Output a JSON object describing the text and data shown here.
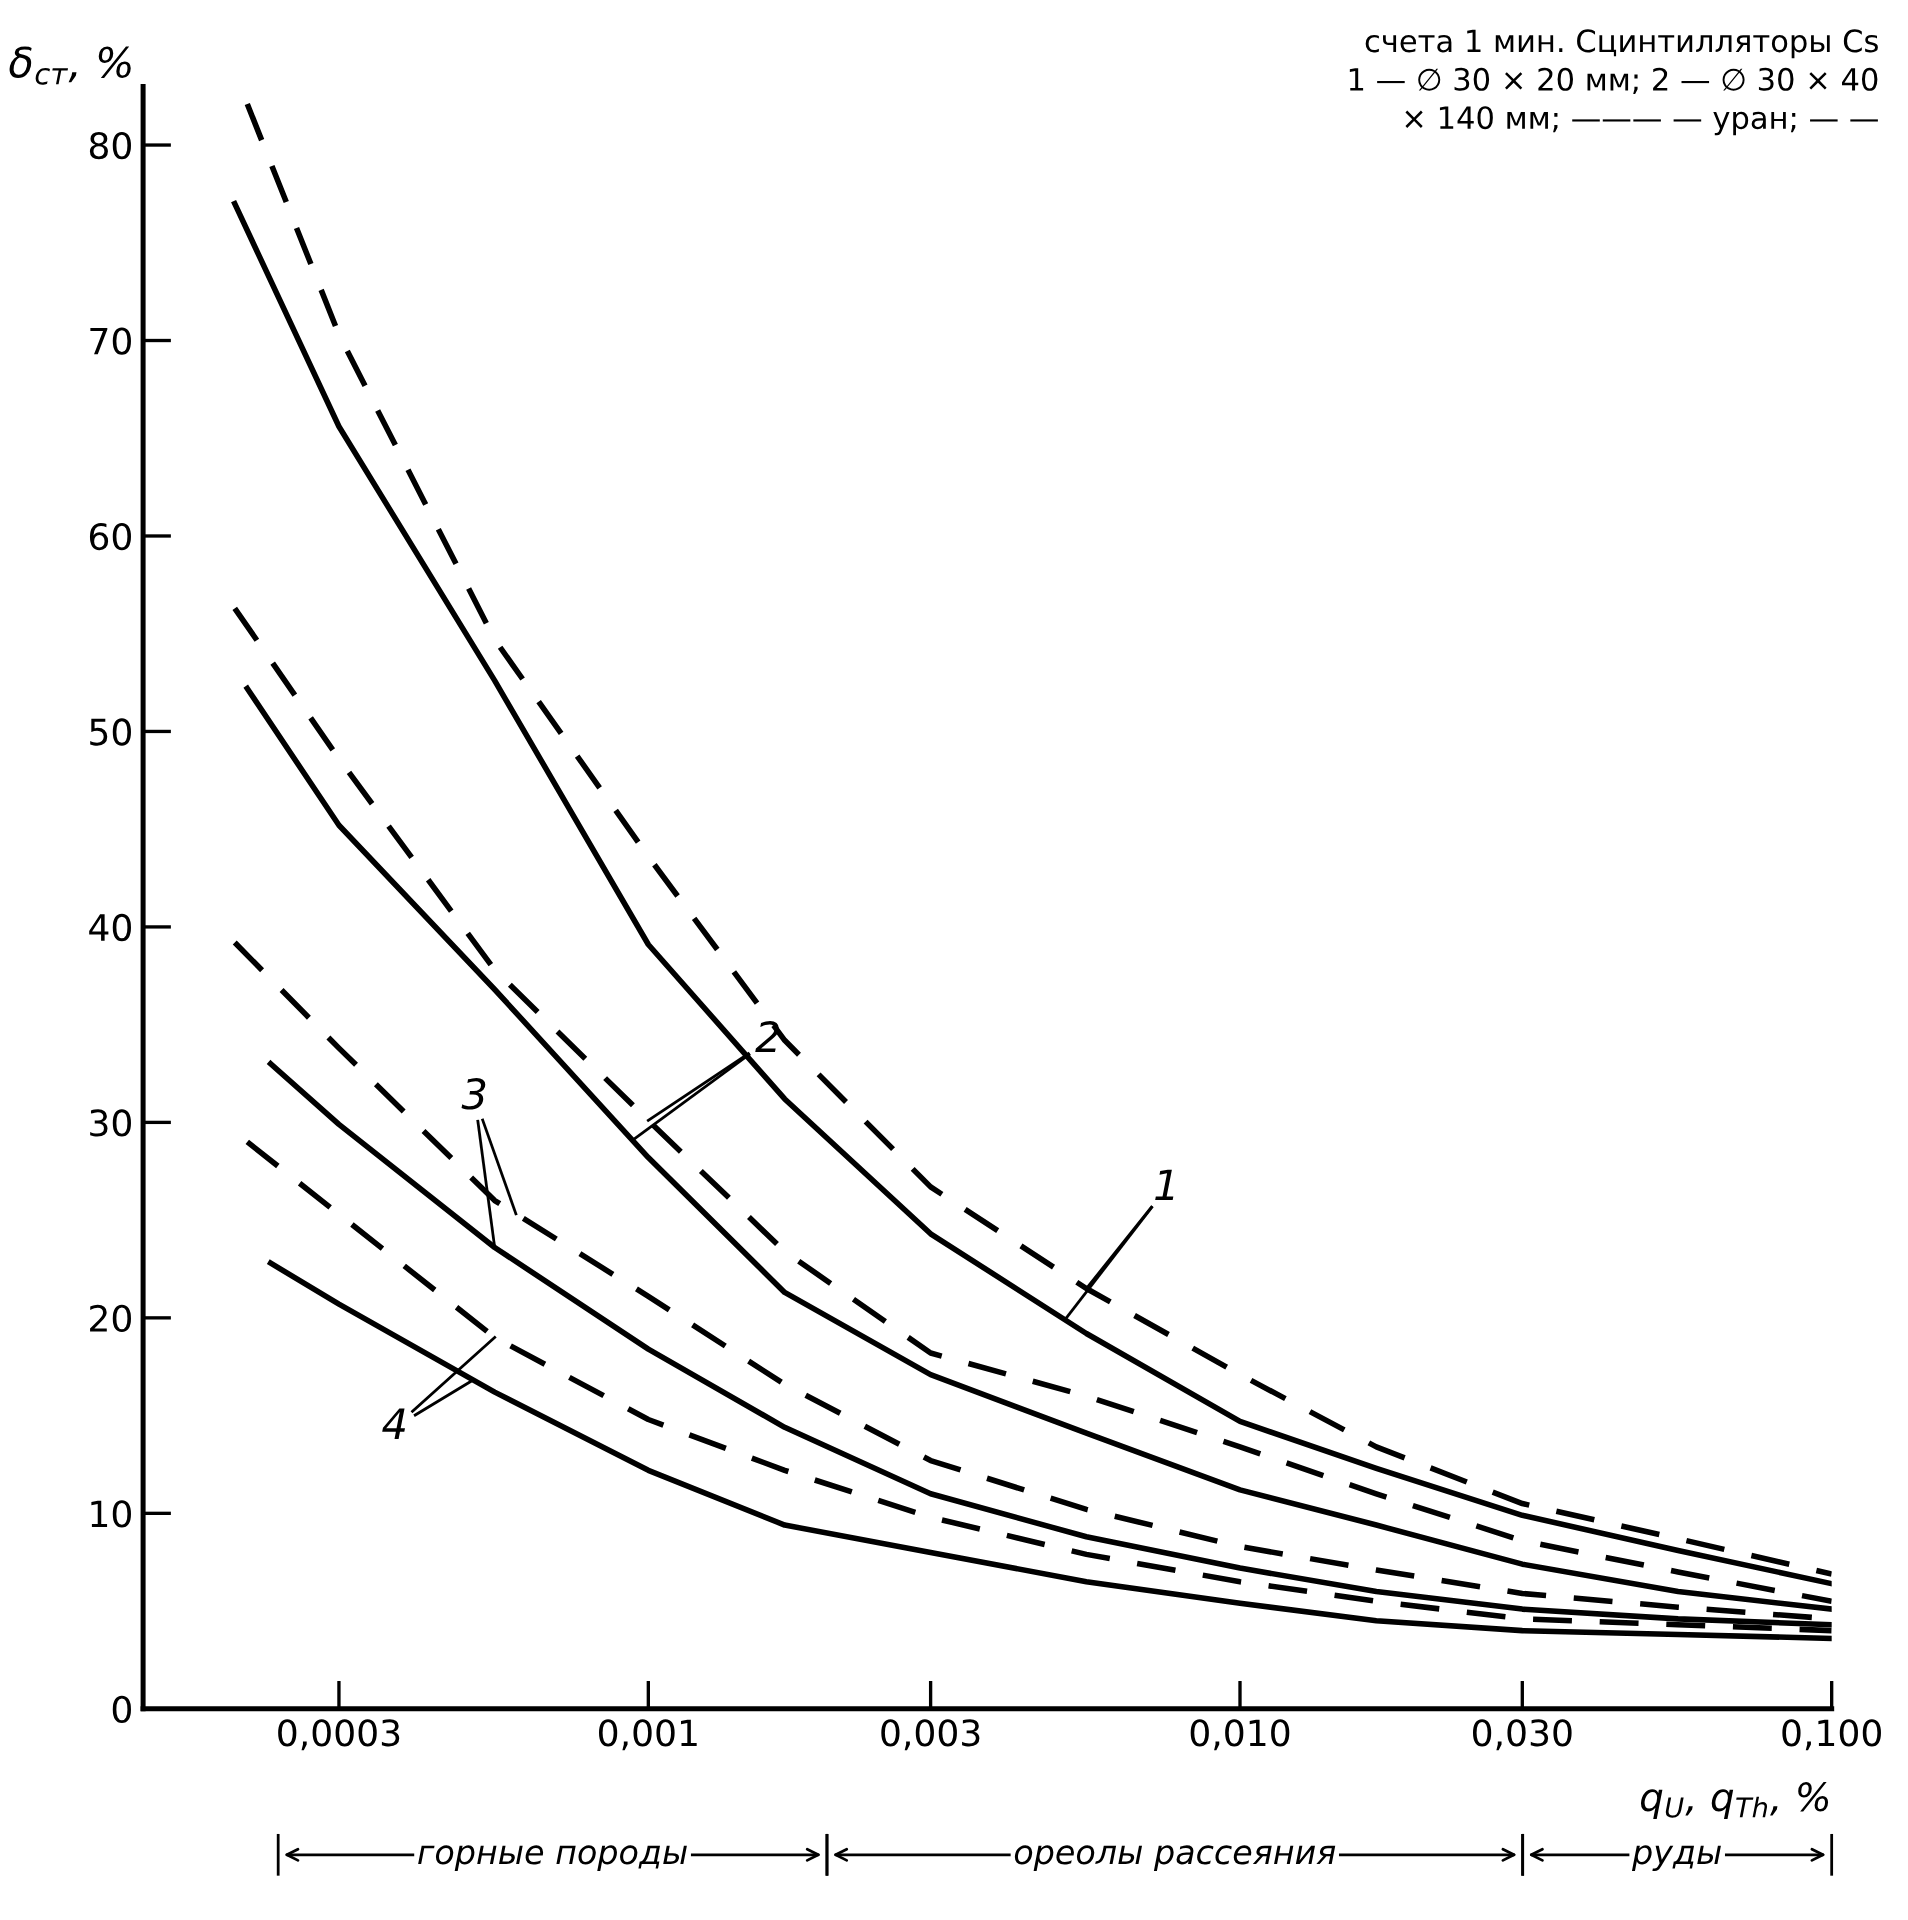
{
  "chart_data": {
    "type": "line",
    "ylabel": "δ$_{ст}$, %",
    "xlabel": "q$_{U}$, q$_{Th}$, %",
    "log": "x",
    "xlim": [
      0.00014,
      0.1
    ],
    "ylim": [
      0,
      83
    ],
    "xticks": [
      {
        "value": 0.0003,
        "label": "0,0003"
      },
      {
        "value": 0.001,
        "label": "0,001"
      },
      {
        "value": 0.003,
        "label": "0,003"
      },
      {
        "value": 0.01,
        "label": "0,010"
      },
      {
        "value": 0.03,
        "label": "0,030"
      },
      {
        "value": 0.1,
        "label": "0,100"
      }
    ],
    "yticks": [
      0,
      10,
      20,
      30,
      40,
      50,
      60,
      70,
      80
    ],
    "grid": false,
    "legend": false,
    "marker": "none",
    "series": [
      {
        "color": "#000000",
        "line_style": "dashed",
        "x": [
          0.00021,
          0.0003,
          0.00055,
          0.001,
          0.0017,
          0.003,
          0.0055,
          0.01,
          0.017,
          0.03,
          0.055,
          0.1
        ],
        "values": [
          82.1,
          70.3,
          54.7,
          43.6,
          34.2,
          26.7,
          21.5,
          17.1,
          13.4,
          10.5,
          8.7,
          6.9
        ]
      },
      {
        "color": "#000000",
        "line_style": "solid",
        "x": [
          0.0002,
          0.0003,
          0.00055,
          0.001,
          0.0017,
          0.003,
          0.0055,
          0.01,
          0.017,
          0.03,
          0.055,
          0.1
        ],
        "values": [
          77.0,
          65.6,
          52.6,
          39.1,
          31.2,
          24.3,
          19.2,
          14.7,
          12.3,
          9.9,
          8.1,
          6.4
        ]
      },
      {
        "color": "#000000",
        "line_style": "dashed",
        "x": [
          0.0002,
          0.0003,
          0.00055,
          0.001,
          0.0017,
          0.003,
          0.0055,
          0.01,
          0.017,
          0.03,
          0.055,
          0.1
        ],
        "values": [
          56.3,
          48.6,
          37.8,
          30.1,
          23.4,
          18.2,
          16.0,
          13.4,
          11.0,
          8.6,
          7.0,
          5.5
        ]
      },
      {
        "color": "#000000",
        "line_style": "solid",
        "x": [
          0.00021,
          0.0003,
          0.00055,
          0.001,
          0.0017,
          0.003,
          0.0055,
          0.01,
          0.017,
          0.03,
          0.055,
          0.1
        ],
        "values": [
          52.2,
          45.2,
          36.8,
          28.2,
          21.3,
          17.1,
          14.1,
          11.2,
          9.4,
          7.4,
          6.0,
          5.1
        ]
      },
      {
        "color": "#000000",
        "line_style": "dashed",
        "x": [
          0.0002,
          0.0003,
          0.00055,
          0.001,
          0.0017,
          0.003,
          0.0055,
          0.01,
          0.017,
          0.03,
          0.055,
          0.1
        ],
        "values": [
          39.2,
          33.8,
          26.0,
          21.1,
          16.6,
          12.7,
          10.2,
          8.3,
          7.1,
          5.9,
          5.2,
          4.6
        ]
      },
      {
        "color": "#000000",
        "line_style": "solid",
        "x": [
          0.00023,
          0.0003,
          0.00055,
          0.001,
          0.0017,
          0.003,
          0.0055,
          0.01,
          0.017,
          0.03,
          0.055,
          0.1
        ],
        "values": [
          33.0,
          29.9,
          23.6,
          18.4,
          14.4,
          11.0,
          8.8,
          7.2,
          6.0,
          5.1,
          4.6,
          4.3
        ]
      },
      {
        "color": "#000000",
        "line_style": "dashed",
        "x": [
          0.00021,
          0.0003,
          0.00055,
          0.001,
          0.0017,
          0.003,
          0.0055,
          0.01,
          0.017,
          0.03,
          0.055,
          0.1
        ],
        "values": [
          29.0,
          25.3,
          19.0,
          14.8,
          12.2,
          9.8,
          7.9,
          6.5,
          5.5,
          4.6,
          4.3,
          4.0
        ]
      },
      {
        "color": "#000000",
        "line_style": "solid",
        "x": [
          0.00023,
          0.0003,
          0.00055,
          0.001,
          0.0017,
          0.003,
          0.0055,
          0.01,
          0.017,
          0.03,
          0.055,
          0.1
        ],
        "values": [
          22.8,
          20.7,
          16.2,
          12.2,
          9.4,
          8.0,
          6.5,
          5.4,
          4.5,
          4.0,
          3.8,
          3.6
        ]
      }
    ],
    "annotations": [
      {
        "text": "1",
        "x": 0.0055,
        "y": 21.5
      },
      {
        "text": "2",
        "x": 0.001,
        "y": 30.1
      },
      {
        "text": "3",
        "x": 0.00055,
        "y": 23.6
      },
      {
        "text": "4",
        "x": 0.00055,
        "y": 19.0
      },
      "счета 1 мин. Сцинтилляторы Cs",
      "1 — ∅ 30 × 20 мм; 2 — ∅ 30 × 40",
      "× 140 мм; ——— — уран; — —",
      "горные породы",
      "ореолы рассеяния",
      "руды"
    ]
  }
}
